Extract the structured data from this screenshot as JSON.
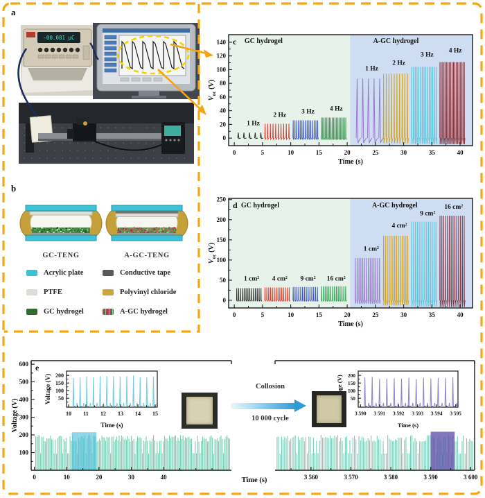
{
  "labels": {
    "a": "a",
    "b": "b"
  },
  "colors": {
    "border": "#F3A712",
    "arrow": "#F2A412",
    "gc_speckle": [
      "#2e7d32",
      "#86c986",
      "#1c4f1c",
      "#caf0ca"
    ],
    "agc_speckle": [
      "#c2185b",
      "#e05570",
      "#3e7d3e",
      "#8fce8f"
    ]
  },
  "panel_a": {
    "multimeter_reading": "-00.081 µC"
  },
  "panel_b": {
    "left_caption": "GC-TENG",
    "right_caption": "A-GC-TENG",
    "legend_col1": [
      {
        "label": "Acrylic plate",
        "swatch": "#3EC1D6"
      },
      {
        "label": "PTFE",
        "swatch": "#DDDCD6"
      },
      {
        "label": "GC hydrogel",
        "swatch": "#2F6B33"
      }
    ],
    "legend_col2": [
      {
        "label": "Conductive tape",
        "swatch": "#5A5A5A"
      },
      {
        "label": "Polyvinyl chloride",
        "swatch": "#CFA43C"
      },
      {
        "label": "A-GC hydrogel",
        "swatch": "repeating-linear-gradient(90deg,#C23B5A 0 2px,#3E7D3E 2px 3px,#C23B5A 3px 4px,#8FCE8F 4px 5px)"
      }
    ]
  },
  "panel_e": {
    "arrow_top_label": "Collosion",
    "arrow_bottom_label": "10 000 cycle",
    "xlabel": "Time (s)"
  },
  "chart_data": [
    {
      "id": "c",
      "type": "pulse",
      "letter": "c",
      "boxed": true,
      "xlabel": "Time (s)",
      "ylabel_rich": [
        {
          "t": "V",
          "i": 1
        },
        {
          "t": "oc",
          "s": 1
        },
        {
          "t": " (V)"
        }
      ],
      "xlim": [
        -1,
        42.2
      ],
      "ylim": [
        -11,
        151
      ],
      "xticks": [
        0,
        5,
        10,
        15,
        20,
        25,
        30,
        35,
        40
      ],
      "xminor": [
        2.5,
        7.5,
        12.5,
        17.5,
        22.5,
        27.5,
        32.5,
        37.5
      ],
      "yticks": [
        0,
        20,
        40,
        60,
        80,
        100,
        120,
        140
      ],
      "yminor": [
        10,
        30,
        50,
        70,
        90,
        110,
        130
      ],
      "split": 20.5,
      "bg_left": "#E7F3EA",
      "bg_right": "#CFDDF2",
      "region_titles": [
        {
          "text": "GC hydrogel",
          "x": 1.8,
          "y": 139
        },
        {
          "text": "A-GC hydrogel",
          "x": 24.6,
          "y": 139
        }
      ],
      "segments": [
        {
          "label": "1 Hz",
          "color": "#2B2B2B",
          "t0": 0.6,
          "n": 5,
          "dt": 1.0,
          "peak": 8,
          "lx": 2.2,
          "ly": 19
        },
        {
          "label": "2 Hz",
          "color": "#E0382D",
          "t0": 5.4,
          "n": 10,
          "dt": 0.47,
          "peak": 21,
          "lx": 6.9,
          "ly": 31
        },
        {
          "label": "3 Hz",
          "color": "#3A53C5",
          "t0": 10.4,
          "n": 15,
          "dt": 0.31,
          "peak": 26,
          "lx": 11.9,
          "ly": 36
        },
        {
          "label": "4 Hz",
          "color": "#2BA24C",
          "t0": 15.4,
          "n": 19,
          "dt": 0.24,
          "peak": 30,
          "lx": 16.9,
          "ly": 40
        },
        {
          "label": "1 Hz",
          "color": "#9679C8",
          "t0": 21.6,
          "n": 5,
          "dt": 1.0,
          "peak": 87,
          "lx": 23.2,
          "ly": 99,
          "wf": 0.8
        },
        {
          "label": "2 Hz",
          "color": "#D5A21C",
          "t0": 26.4,
          "n": 10,
          "dt": 0.47,
          "peak": 94,
          "lx": 28.0,
          "ly": 107
        },
        {
          "label": "3 Hz",
          "color": "#58C5D8",
          "t0": 31.4,
          "n": 15,
          "dt": 0.31,
          "peak": 104,
          "lx": 33.0,
          "ly": 119
        },
        {
          "label": "4 Hz",
          "color": "#7C3A45",
          "t0": 36.4,
          "n": 19,
          "dt": 0.24,
          "peak": 111,
          "lx": 38.0,
          "ly": 125
        }
      ]
    },
    {
      "id": "d",
      "type": "pulse",
      "letter": "d",
      "boxed": true,
      "xlabel": "Time (s)",
      "ylabel_rich": [
        {
          "t": "V",
          "i": 1
        },
        {
          "t": "oc",
          "s": 1
        },
        {
          "t": " (V)"
        }
      ],
      "xlim": [
        -1,
        42.2
      ],
      "ylim": [
        -19,
        253
      ],
      "xticks": [
        0,
        5,
        10,
        15,
        20,
        25,
        30,
        35,
        40
      ],
      "xminor": [
        2.5,
        7.5,
        12.5,
        17.5,
        22.5,
        27.5,
        32.5,
        37.5
      ],
      "yticks": [
        0,
        50,
        100,
        150,
        200,
        250
      ],
      "yminor": [
        25,
        75,
        125,
        175,
        225
      ],
      "split": 20.5,
      "bg_left": "#E7F3EA",
      "bg_right": "#CFDDF2",
      "region_titles": [
        {
          "text": "GC hydrogel",
          "x": 1.2,
          "y": 231
        },
        {
          "text": "A-GC hydrogel",
          "x": 24.4,
          "y": 231
        }
      ],
      "segments": [
        {
          "label": "1 cm²",
          "color": "#2B2B2B",
          "t0": 0.4,
          "n": 14,
          "dt": 0.33,
          "peak": 30,
          "lx": 1.7,
          "ly": 49
        },
        {
          "label": "4 cm²",
          "color": "#E0382D",
          "t0": 5.4,
          "n": 14,
          "dt": 0.33,
          "peak": 32,
          "lx": 6.7,
          "ly": 49
        },
        {
          "label": "9 cm²",
          "color": "#3A53C5",
          "t0": 10.4,
          "n": 14,
          "dt": 0.33,
          "peak": 33,
          "lx": 11.7,
          "ly": 49
        },
        {
          "label": "16 cm²",
          "color": "#2BA24C",
          "t0": 15.4,
          "n": 14,
          "dt": 0.33,
          "peak": 35,
          "lx": 16.4,
          "ly": 49
        },
        {
          "label": "1 cm²",
          "color": "#9679C8",
          "t0": 21.4,
          "n": 14,
          "dt": 0.33,
          "peak": 105,
          "lx": 22.9,
          "ly": 123
        },
        {
          "label": "4 cm²",
          "color": "#D5A21C",
          "t0": 26.4,
          "n": 14,
          "dt": 0.33,
          "peak": 160,
          "lx": 27.9,
          "ly": 181
        },
        {
          "label": "9 cm²",
          "color": "#58C5D8",
          "t0": 31.4,
          "n": 14,
          "dt": 0.33,
          "peak": 195,
          "lx": 32.9,
          "ly": 211
        },
        {
          "label": "16 cm²",
          "color": "#7C3A45",
          "t0": 36.4,
          "n": 14,
          "dt": 0.33,
          "peak": 210,
          "lx": 37.2,
          "ly": 227
        }
      ]
    },
    {
      "id": "el",
      "type": "dense",
      "letter": "e",
      "ylabel_rich": [
        {
          "t": "Voltage (V)"
        }
      ],
      "xlim": [
        -1,
        61
      ],
      "ylim": [
        0,
        620
      ],
      "xticks": [
        0,
        10,
        20,
        30,
        40
      ],
      "xminor": [
        5,
        15,
        25,
        35,
        45,
        50,
        55
      ],
      "yticks": [
        100,
        200,
        300,
        400,
        500,
        600
      ],
      "yminor": [
        50,
        150,
        250,
        350,
        450,
        550
      ],
      "spines": [
        "left",
        "bottom",
        "top"
      ],
      "spikes": {
        "t0": 0.4,
        "t1": 60.6,
        "dt": 0.38,
        "peak": 200,
        "color": "#7FD0B8"
      },
      "highlight": {
        "x0": 11.6,
        "x1": 19.2,
        "y1": 215,
        "color": "rgba(84,192,221,0.65)"
      }
    },
    {
      "id": "er",
      "type": "dense",
      "xlim": [
        3551,
        3601
      ],
      "ylim": [
        0,
        620
      ],
      "xticks": [
        3560,
        3570,
        3580,
        3590,
        3600
      ],
      "xtick_labels": [
        "3 560",
        "3 570",
        "3 580",
        "3 590",
        "3 600"
      ],
      "xminor": [
        3555,
        3565,
        3575,
        3585,
        3595
      ],
      "spines": [
        "bottom",
        "top",
        "right"
      ],
      "spikes": {
        "t0": 3551.5,
        "t1": 3600.6,
        "dt": 0.38,
        "peak": 200,
        "color": "#7FD0B8"
      },
      "highlight": {
        "x0": 3590,
        "x1": 3596,
        "y1": 218,
        "color": "rgba(96,82,170,0.78)"
      }
    },
    {
      "id": "il",
      "type": "pulse",
      "boxed": true,
      "small": true,
      "xlabel": "Time (s)",
      "ylabel_rich": [
        {
          "t": "Voltage (V)"
        }
      ],
      "xlim": [
        9.88,
        15.12
      ],
      "ylim": [
        -8,
        228
      ],
      "xticks": [
        10,
        11,
        12,
        13,
        14,
        15
      ],
      "xminor": [
        10.5,
        11.5,
        12.5,
        13.5,
        14.5
      ],
      "yticks": [
        50,
        100,
        150,
        200
      ],
      "yminor": [
        25,
        75,
        125,
        175
      ],
      "segments": [
        {
          "color": "#74CDE2",
          "t0": 10.25,
          "n": 13,
          "dt": 0.385,
          "peak": 200,
          "vary": 18,
          "minor": 20,
          "wf": 0.4
        }
      ]
    },
    {
      "id": "ir",
      "type": "pulse",
      "boxed": true,
      "small": true,
      "xlabel": "Time (s)",
      "ylabel_rich": [
        {
          "t": "Voltage (V)"
        }
      ],
      "xlim": [
        3589.88,
        3595.12
      ],
      "ylim": [
        -8,
        228
      ],
      "xticks": [
        3590,
        3591,
        3592,
        3593,
        3594,
        3595
      ],
      "xtick_labels": [
        "3 590",
        "3 591",
        "3 592",
        "3 593",
        "3 594",
        "3 595"
      ],
      "xminor": [
        3590.5,
        3591.5,
        3592.5,
        3593.5,
        3594.5
      ],
      "yticks": [
        50,
        100,
        150,
        200
      ],
      "yminor": [
        25,
        75,
        125,
        175
      ],
      "segments": [
        {
          "color": "#9088CE",
          "t0": 3590.2,
          "n": 13,
          "dt": 0.385,
          "peak": 190,
          "vary": 16,
          "minor": 20,
          "wf": 0.4
        }
      ]
    }
  ]
}
